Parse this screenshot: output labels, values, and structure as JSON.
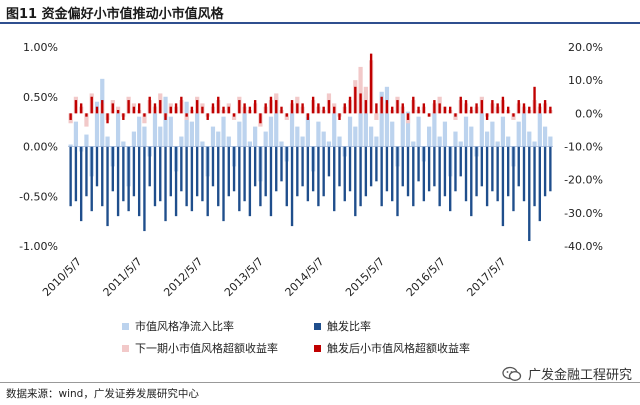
{
  "figure": {
    "title": "图11  资金偏好小市值推动小市值风格",
    "source": "数据来源：wind，广发证券发展研究中心",
    "watermark": "广发金融工程研究",
    "accent_color": "#2f4f8f"
  },
  "chart_data": {
    "type": "bar",
    "left_axis": {
      "ticks": [
        "1.00%",
        "0.50%",
        "0.00%",
        "-0.50%",
        "-1.00%"
      ],
      "tick_values": [
        1.0,
        0.5,
        0.0,
        -0.5,
        -1.0
      ],
      "range": [
        -1.0,
        1.0
      ],
      "unit": "%"
    },
    "right_axis": {
      "ticks": [
        "20.0%",
        "10.0%",
        "0.0%",
        "-10.0%",
        "-20.0%",
        "-30.0%",
        "-40.0%"
      ],
      "tick_values": [
        20,
        10,
        0,
        -10,
        -20,
        -30,
        -40
      ],
      "range": [
        -40,
        20
      ],
      "unit": "%"
    },
    "x_ticks": [
      "2010/5/7",
      "2011/5/7",
      "2012/5/7",
      "2013/5/7",
      "2014/5/7",
      "2015/5/7",
      "2016/5/7",
      "2017/5/7"
    ],
    "x_range": [
      "2010/5/7",
      "2018/4/20"
    ],
    "grid": false,
    "legend_position": "bottom",
    "series": [
      {
        "name": "市值风格净流入比率",
        "axis": "left",
        "color": "#bcd3ee",
        "values": [
          0.02,
          0.25,
          -0.05,
          0.12,
          -0.3,
          0.45,
          0.68,
          0.1,
          -0.2,
          0.35,
          0.05,
          -0.4,
          0.15,
          0.3,
          0.2,
          -0.1,
          0.4,
          0.2,
          0.5,
          0.3,
          -0.25,
          0.1,
          0.45,
          0.25,
          0.35,
          0.05,
          -0.3,
          0.2,
          0.15,
          0.3,
          0.1,
          -0.2,
          0.25,
          0.35,
          0.05,
          0.2,
          -0.35,
          0.15,
          0.3,
          0.5,
          0.05,
          -0.15,
          0.4,
          0.2,
          0.1,
          0.3,
          -0.25,
          0.25,
          0.15,
          0.05,
          0.35,
          0.1,
          -0.1,
          0.3,
          0.2,
          0.45,
          0.55,
          0.2,
          0.1,
          0.55,
          0.6,
          0.25,
          -0.2,
          0.4,
          0.35,
          0.05,
          0.3,
          -0.15,
          0.2,
          0.35,
          0.1,
          0.25,
          -0.3,
          0.15,
          0.05,
          0.3,
          0.2,
          -0.1,
          0.35,
          0.15,
          0.25,
          0.05,
          0.3,
          0.1,
          -0.2,
          0.25,
          0.4,
          0.15,
          0.05,
          0.35,
          0.2,
          0.1
        ]
      },
      {
        "name": "触发比率",
        "axis": "left",
        "color": "#1f4e8c",
        "values": [
          -0.6,
          -0.55,
          -0.75,
          -0.5,
          -0.65,
          -0.4,
          -0.6,
          -0.8,
          -0.45,
          -0.7,
          -0.55,
          -0.65,
          -0.5,
          -0.7,
          -0.85,
          -0.4,
          -0.6,
          -0.55,
          -0.75,
          -0.5,
          -0.7,
          -0.45,
          -0.6,
          -0.65,
          -0.5,
          -0.55,
          -0.7,
          -0.4,
          -0.6,
          -0.75,
          -0.5,
          -0.45,
          -0.65,
          -0.55,
          -0.7,
          -0.4,
          -0.6,
          -0.5,
          -0.7,
          -0.45,
          -0.35,
          -0.6,
          -0.8,
          -0.5,
          -0.4,
          -0.55,
          -0.45,
          -0.6,
          -0.5,
          -0.3,
          -0.65,
          -0.4,
          -0.55,
          -0.45,
          -0.7,
          -0.6,
          -0.5,
          -0.4,
          -0.35,
          -0.6,
          -0.45,
          -0.55,
          -0.7,
          -0.4,
          -0.5,
          -0.6,
          -0.35,
          -0.55,
          -0.45,
          -0.4,
          -0.6,
          -0.5,
          -0.65,
          -0.45,
          -0.3,
          -0.55,
          -0.7,
          -0.5,
          -0.4,
          -0.6,
          -0.45,
          -0.55,
          -0.8,
          -0.5,
          -0.65,
          -0.4,
          -0.55,
          -0.95,
          -0.6,
          -0.75,
          -0.5,
          -0.45
        ]
      },
      {
        "name": "下一期小市值风格超额收益率",
        "axis": "right",
        "color": "#f2c9c9",
        "values": [
          -3,
          5,
          2,
          -4,
          6,
          1,
          3,
          -2,
          4,
          2,
          -1,
          5,
          3,
          1,
          -3,
          4,
          2,
          6,
          -1,
          3,
          2,
          4,
          -2,
          1,
          5,
          3,
          -1,
          2,
          4,
          1,
          3,
          -2,
          5,
          2,
          1,
          3,
          -4,
          2,
          4,
          6,
          1,
          -2,
          3,
          5,
          2,
          -1,
          4,
          2,
          1,
          6,
          3,
          -1,
          2,
          4,
          10,
          14,
          8,
          16,
          -2,
          4,
          3,
          1,
          5,
          2,
          -3,
          4,
          1,
          2,
          -1,
          3,
          5,
          2,
          1,
          -2,
          4,
          3,
          1,
          2,
          5,
          -1,
          3,
          2,
          4,
          1,
          -2,
          3,
          2,
          1,
          4,
          2,
          3,
          1
        ]
      },
      {
        "name": "触发后小市值风格超额收益率",
        "axis": "right",
        "color": "#c00000",
        "values": [
          -2,
          4,
          3,
          -1,
          5,
          2,
          4,
          -3,
          3,
          1,
          -2,
          4,
          2,
          3,
          -1,
          5,
          3,
          4,
          -2,
          2,
          3,
          5,
          -1,
          2,
          4,
          2,
          -2,
          3,
          5,
          2,
          2,
          -1,
          4,
          3,
          2,
          4,
          -3,
          3,
          5,
          4,
          2,
          -1,
          4,
          3,
          3,
          -2,
          5,
          3,
          2,
          4,
          2,
          -2,
          3,
          5,
          8,
          6,
          4,
          18,
          3,
          5,
          4,
          2,
          4,
          3,
          -2,
          5,
          2,
          3,
          -1,
          4,
          3,
          2,
          2,
          -1,
          5,
          4,
          2,
          3,
          4,
          -2,
          4,
          3,
          5,
          2,
          -1,
          4,
          3,
          2,
          8,
          3,
          4,
          2
        ]
      }
    ]
  },
  "legend": {
    "items": [
      {
        "label": "市值风格净流入比率",
        "color": "#bcd3ee"
      },
      {
        "label": "触发比率",
        "color": "#1f4e8c"
      },
      {
        "label": "下一期小市值风格超额收益率",
        "color": "#f2c9c9"
      },
      {
        "label": "触发后小市值风格超额收益率",
        "color": "#c00000"
      }
    ]
  }
}
